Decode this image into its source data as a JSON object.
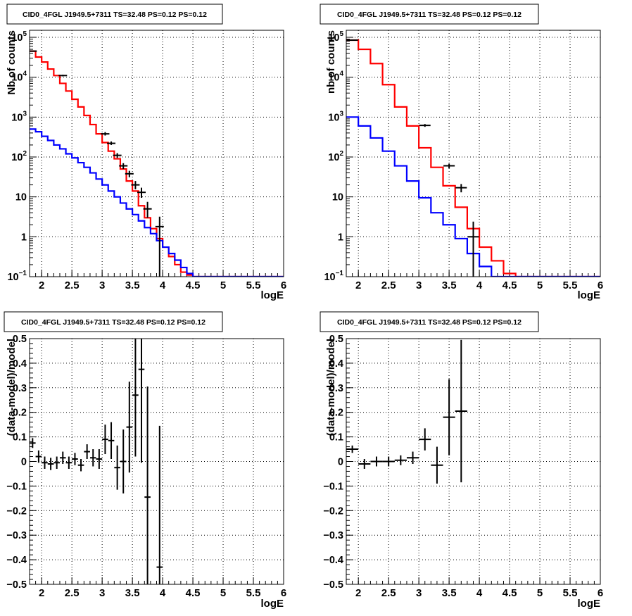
{
  "chart_data": [
    {
      "panel": "top-left",
      "type": "line",
      "title": "CID0_4FGL J1949.5+7311 TS=32.48 PS=0.12 PS=0.12",
      "xlabel": "logE",
      "ylabel": "Nb of counts",
      "log_y": true,
      "xlim": [
        1.8,
        6.0
      ],
      "ylim": [
        0.1,
        150000
      ],
      "grid": true,
      "x_ticks": [
        "2",
        "2.5",
        "3",
        "3.5",
        "4",
        "4.5",
        "5",
        "5.5",
        "6"
      ],
      "y_ticks": [
        "10^-1",
        "1",
        "10",
        "10^2",
        "10^3",
        "10^4",
        "10^5"
      ],
      "bin_edges": [
        1.8,
        1.9,
        2.0,
        2.1,
        2.2,
        2.3,
        2.4,
        2.5,
        2.6,
        2.7,
        2.8,
        2.9,
        3.0,
        3.1,
        3.2,
        3.3,
        3.4,
        3.5,
        3.6,
        3.7,
        3.8,
        3.9,
        4.0,
        4.1,
        4.2,
        4.3,
        4.4,
        4.5,
        4.6,
        4.7,
        4.8,
        4.9,
        5.0,
        5.1,
        5.2,
        5.3,
        5.4,
        5.5,
        5.6,
        5.7,
        5.8,
        5.9,
        6.0
      ],
      "series": [
        {
          "role": "model-total",
          "color": "#ff0000",
          "style": "step",
          "values": [
            45000,
            32000,
            24000,
            16000,
            11000,
            7000,
            4500,
            2800,
            1800,
            1100,
            650,
            380,
            230,
            140,
            90,
            50,
            25,
            14,
            6,
            3,
            1.6,
            0.9,
            0.55,
            0.32,
            0.2,
            0.13,
            0.11,
            0.1,
            0.1,
            0.1,
            0.1,
            0.1,
            0.1,
            0.1,
            0.1,
            0.1,
            0.1,
            0.1,
            0.1,
            0.1,
            0.1,
            0.1
          ]
        },
        {
          "role": "model-source",
          "color": "#0000ff",
          "style": "step",
          "values": [
            500,
            430,
            330,
            260,
            200,
            160,
            120,
            95,
            72,
            55,
            40,
            28,
            20,
            14,
            10,
            7,
            5,
            3.6,
            2.5,
            1.7,
            1.2,
            0.8,
            0.55,
            0.38,
            0.26,
            0.17,
            0.12,
            0.1,
            0.1,
            0.1,
            0.1,
            0.1,
            0.1,
            0.1,
            0.1,
            0.1,
            0.1,
            0.1,
            0.1,
            0.1,
            0.1,
            0.1
          ]
        },
        {
          "role": "data",
          "color": "#000000",
          "style": "errorbar",
          "points": [
            {
              "x": 1.85,
              "y": 45000,
              "ylo": 44000,
              "yhi": 46000
            },
            {
              "x": 2.35,
              "y": 11000,
              "ylo": 10500,
              "yhi": 11500
            },
            {
              "x": 3.05,
              "y": 380,
              "ylo": 345,
              "yhi": 420
            },
            {
              "x": 3.15,
              "y": 220,
              "ylo": 200,
              "yhi": 245
            },
            {
              "x": 3.25,
              "y": 110,
              "ylo": 95,
              "yhi": 125
            },
            {
              "x": 3.35,
              "y": 60,
              "ylo": 50,
              "yhi": 70
            },
            {
              "x": 3.45,
              "y": 38,
              "ylo": 31,
              "yhi": 45
            },
            {
              "x": 3.55,
              "y": 20,
              "ylo": 15.5,
              "yhi": 25
            },
            {
              "x": 3.65,
              "y": 13,
              "ylo": 9.5,
              "yhi": 17
            },
            {
              "x": 3.75,
              "y": 5,
              "ylo": 3,
              "yhi": 7.5
            },
            {
              "x": 3.95,
              "y": 1.8,
              "ylo": 0.1,
              "yhi": 3.2
            }
          ]
        }
      ]
    },
    {
      "panel": "top-right",
      "type": "line",
      "title": "CID0_4FGL J1949.5+7311 TS=32.48 PS=0.12 PS=0.12",
      "xlabel": "logE",
      "ylabel": "nb of counts",
      "log_y": true,
      "xlim": [
        1.8,
        6.0
      ],
      "ylim": [
        0.1,
        150000
      ],
      "grid": true,
      "x_ticks": [
        "2",
        "2.5",
        "3",
        "3.5",
        "4",
        "4.5",
        "5",
        "5.5",
        "6"
      ],
      "y_ticks": [
        "10^-1",
        "1",
        "10",
        "10^2",
        "10^3",
        "10^4",
        "10^5"
      ],
      "bin_edges": [
        1.8,
        2.0,
        2.2,
        2.4,
        2.6,
        2.8,
        3.0,
        3.2,
        3.4,
        3.6,
        3.8,
        4.0,
        4.2,
        4.4,
        4.6,
        4.8,
        5.0,
        5.2,
        5.4,
        5.6,
        5.8,
        6.0
      ],
      "series": [
        {
          "role": "model-total",
          "color": "#ff0000",
          "style": "step",
          "values": [
            85000,
            50000,
            22000,
            6500,
            1800,
            600,
            170,
            55,
            19,
            5.5,
            1.6,
            0.55,
            0.25,
            0.12,
            0.1,
            0.1,
            0.1,
            0.1,
            0.1,
            0.1,
            0.1
          ]
        },
        {
          "role": "model-source",
          "color": "#0000ff",
          "style": "step",
          "values": [
            1000,
            600,
            300,
            140,
            60,
            25,
            9.5,
            4,
            2,
            0.9,
            0.38,
            0.18,
            0.1,
            0.1,
            0.1,
            0.1,
            0.1,
            0.1,
            0.1,
            0.1,
            0.1
          ]
        },
        {
          "role": "data",
          "color": "#000000",
          "style": "errorbar",
          "points": [
            {
              "x": 1.9,
              "y": 85000,
              "ylo": 84000,
              "yhi": 86000
            },
            {
              "x": 3.1,
              "y": 620,
              "ylo": 570,
              "yhi": 670
            },
            {
              "x": 3.5,
              "y": 60,
              "ylo": 52,
              "yhi": 68
            },
            {
              "x": 3.7,
              "y": 17,
              "ylo": 13,
              "yhi": 21
            },
            {
              "x": 3.9,
              "y": 1,
              "ylo": 0.1,
              "yhi": 2.4
            }
          ]
        }
      ]
    },
    {
      "panel": "bottom-left",
      "type": "scatter",
      "title": "CID0_4FGL J1949.5+7311 TS=32.48 PS=0.12 PS=0.12",
      "xlabel": "logE",
      "ylabel": "(data-model)/model",
      "log_y": false,
      "xlim": [
        1.8,
        6.0
      ],
      "ylim": [
        -0.5,
        0.5
      ],
      "grid": true,
      "x_ticks": [
        "2",
        "2.5",
        "3",
        "3.5",
        "4",
        "4.5",
        "5",
        "5.5",
        "6"
      ],
      "y_ticks": [
        "-0.5",
        "-0.4",
        "-0.3",
        "-0.2",
        "-0.1",
        "0",
        "0.1",
        "0.2",
        "0.3",
        "0.4",
        "0.5"
      ],
      "series": [
        {
          "role": "residuals",
          "color": "#000000",
          "style": "errorbar",
          "points": [
            {
              "x": 1.85,
              "xerr": 0.05,
              "y": 0.075,
              "yerr": 0.02
            },
            {
              "x": 1.95,
              "xerr": 0.05,
              "y": 0.02,
              "yerr": 0.025
            },
            {
              "x": 2.05,
              "xerr": 0.05,
              "y": -0.005,
              "yerr": 0.025
            },
            {
              "x": 2.15,
              "xerr": 0.05,
              "y": -0.01,
              "yerr": 0.025
            },
            {
              "x": 2.25,
              "xerr": 0.05,
              "y": -0.005,
              "yerr": 0.025
            },
            {
              "x": 2.35,
              "xerr": 0.05,
              "y": 0.015,
              "yerr": 0.025
            },
            {
              "x": 2.45,
              "xerr": 0.05,
              "y": -0.005,
              "yerr": 0.025
            },
            {
              "x": 2.55,
              "xerr": 0.05,
              "y": 0.01,
              "yerr": 0.025
            },
            {
              "x": 2.65,
              "xerr": 0.05,
              "y": -0.015,
              "yerr": 0.025
            },
            {
              "x": 2.75,
              "xerr": 0.05,
              "y": 0.04,
              "yerr": 0.03
            },
            {
              "x": 2.85,
              "xerr": 0.05,
              "y": 0.015,
              "yerr": 0.035
            },
            {
              "x": 2.95,
              "xerr": 0.05,
              "y": 0.01,
              "yerr": 0.04
            },
            {
              "x": 3.05,
              "xerr": 0.05,
              "y": 0.09,
              "yerr": 0.06
            },
            {
              "x": 3.15,
              "xerr": 0.05,
              "y": 0.085,
              "yerr": 0.075
            },
            {
              "x": 3.25,
              "xerr": 0.05,
              "y": -0.025,
              "yerr": 0.09
            },
            {
              "x": 3.35,
              "xerr": 0.05,
              "y": 0.0,
              "yerr": 0.13
            },
            {
              "x": 3.45,
              "xerr": 0.05,
              "y": 0.14,
              "yerr": 0.185
            },
            {
              "x": 3.55,
              "xerr": 0.05,
              "y": 0.27,
              "yerr": 0.25
            },
            {
              "x": 3.65,
              "xerr": 0.05,
              "y": 0.375,
              "yerr": 0.38
            },
            {
              "x": 3.75,
              "xerr": 0.05,
              "y": -0.145,
              "yerr": 0.45
            },
            {
              "x": 3.95,
              "xerr": 0.05,
              "y": -0.43,
              "yerr": 0.575
            }
          ]
        }
      ]
    },
    {
      "panel": "bottom-right",
      "type": "scatter",
      "title": "CID0_4FGL J1949.5+7311 TS=32.48 PS=0.12 PS=0.12",
      "xlabel": "logE",
      "ylabel": "(data-model)/model",
      "log_y": false,
      "xlim": [
        1.8,
        6.0
      ],
      "ylim": [
        -0.5,
        0.5
      ],
      "grid": true,
      "x_ticks": [
        "2",
        "2.5",
        "3",
        "3.5",
        "4",
        "4.5",
        "5",
        "5.5",
        "6"
      ],
      "y_ticks": [
        "-0.5",
        "-0.4",
        "-0.3",
        "-0.2",
        "-0.1",
        "0",
        "0.1",
        "0.2",
        "0.3",
        "0.4",
        "0.5"
      ],
      "series": [
        {
          "role": "residuals",
          "color": "#000000",
          "style": "errorbar",
          "points": [
            {
              "x": 1.9,
              "xerr": 0.1,
              "y": 0.05,
              "yerr": 0.015
            },
            {
              "x": 2.1,
              "xerr": 0.1,
              "y": -0.01,
              "yerr": 0.02
            },
            {
              "x": 2.3,
              "xerr": 0.1,
              "y": 0.0,
              "yerr": 0.02
            },
            {
              "x": 2.5,
              "xerr": 0.1,
              "y": 0.0,
              "yerr": 0.02
            },
            {
              "x": 2.7,
              "xerr": 0.1,
              "y": 0.005,
              "yerr": 0.02
            },
            {
              "x": 2.9,
              "xerr": 0.1,
              "y": 0.015,
              "yerr": 0.025
            },
            {
              "x": 3.1,
              "xerr": 0.1,
              "y": 0.09,
              "yerr": 0.045
            },
            {
              "x": 3.3,
              "xerr": 0.1,
              "y": -0.015,
              "yerr": 0.075
            },
            {
              "x": 3.5,
              "xerr": 0.1,
              "y": 0.18,
              "yerr": 0.155
            },
            {
              "x": 3.7,
              "xerr": 0.1,
              "y": 0.205,
              "yerr": 0.29
            }
          ]
        }
      ]
    }
  ]
}
